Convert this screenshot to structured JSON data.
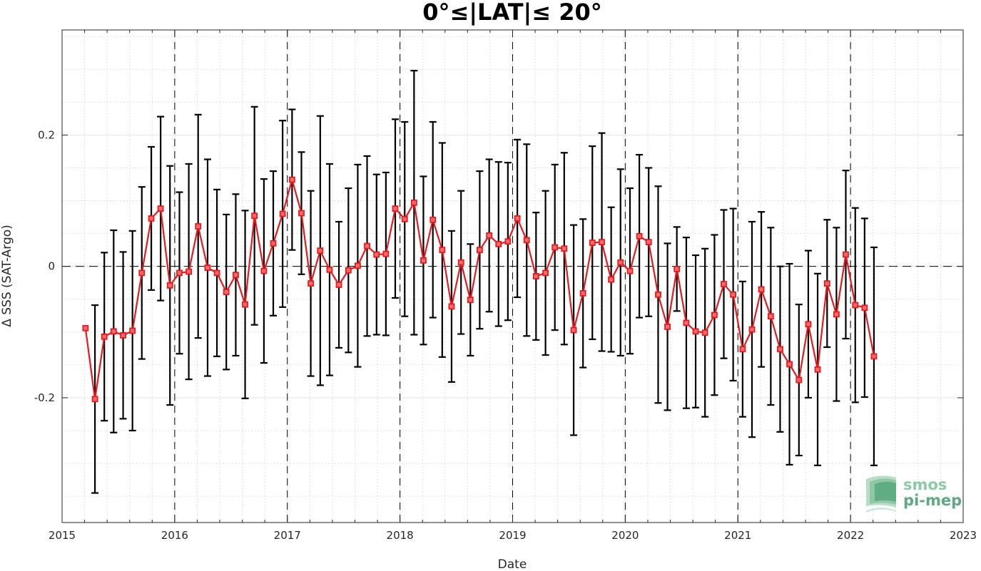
{
  "chart_data": {
    "type": "line",
    "title": "0°≤|LAT|≤ 20°",
    "xlabel": "Date",
    "ylabel": "Δ SSS (SAT-Argo)",
    "xlim": [
      2015,
      2023
    ],
    "ylim": [
      -0.39,
      0.36
    ],
    "xticks": [
      2015,
      2016,
      2017,
      2018,
      2019,
      2020,
      2021,
      2022,
      2023
    ],
    "xtick_labels": [
      "2015",
      "2016",
      "2017",
      "2018",
      "2019",
      "2020",
      "2021",
      "2022",
      "2023"
    ],
    "yticks": [
      -0.2,
      0,
      0.2
    ],
    "ytick_labels": [
      "-0.2",
      "0",
      "0.2"
    ],
    "grid": true,
    "year_separators": [
      2016,
      2017,
      2018,
      2019,
      2020,
      2021,
      2022
    ],
    "zero_line": true,
    "series": [
      {
        "marker": "square",
        "color": "#e8191d",
        "errorbar_color": "#000000",
        "x": [
          2015.208,
          2015.292,
          2015.375,
          2015.458,
          2015.542,
          2015.625,
          2015.708,
          2015.792,
          2015.875,
          2015.958,
          2016.042,
          2016.125,
          2016.208,
          2016.292,
          2016.375,
          2016.458,
          2016.542,
          2016.625,
          2016.708,
          2016.792,
          2016.875,
          2016.958,
          2017.042,
          2017.125,
          2017.208,
          2017.292,
          2017.375,
          2017.458,
          2017.542,
          2017.625,
          2017.708,
          2017.792,
          2017.875,
          2017.958,
          2018.042,
          2018.125,
          2018.208,
          2018.292,
          2018.375,
          2018.458,
          2018.542,
          2018.625,
          2018.708,
          2018.792,
          2018.875,
          2018.958,
          2019.042,
          2019.125,
          2019.208,
          2019.292,
          2019.375,
          2019.458,
          2019.542,
          2019.625,
          2019.708,
          2019.792,
          2019.875,
          2019.958,
          2020.042,
          2020.125,
          2020.208,
          2020.292,
          2020.375,
          2020.458,
          2020.542,
          2020.625,
          2020.708,
          2020.792,
          2020.875,
          2020.958,
          2021.042,
          2021.125,
          2021.208,
          2021.292,
          2021.375,
          2021.458,
          2021.542,
          2021.625,
          2021.708,
          2021.792,
          2021.875,
          2021.958,
          2022.042,
          2022.125,
          2022.208
        ],
        "y": [
          -0.094,
          -0.202,
          -0.107,
          -0.099,
          -0.105,
          -0.098,
          -0.01,
          0.073,
          0.088,
          -0.029,
          -0.01,
          -0.008,
          0.061,
          -0.002,
          -0.01,
          -0.039,
          -0.013,
          -0.058,
          0.077,
          -0.007,
          0.035,
          0.08,
          0.132,
          0.081,
          -0.026,
          0.024,
          -0.005,
          -0.028,
          -0.006,
          0.001,
          0.031,
          0.018,
          0.019,
          0.088,
          0.072,
          0.097,
          0.009,
          0.071,
          0.025,
          -0.061,
          0.006,
          -0.051,
          0.025,
          0.047,
          0.034,
          0.038,
          0.073,
          0.04,
          -0.015,
          -0.01,
          0.029,
          0.027,
          -0.097,
          -0.041,
          0.036,
          0.037,
          -0.02,
          0.006,
          -0.007,
          0.046,
          0.037,
          -0.043,
          -0.092,
          -0.004,
          -0.086,
          -0.099,
          -0.101,
          -0.074,
          -0.027,
          -0.043,
          -0.126,
          -0.096,
          -0.035,
          -0.076,
          -0.126,
          -0.149,
          -0.173,
          -0.088,
          -0.157,
          -0.026,
          -0.073,
          0.018,
          -0.059,
          -0.063,
          -0.137
        ],
        "yerr": [
          0.0,
          0.143,
          0.128,
          0.154,
          0.127,
          0.152,
          0.131,
          0.109,
          0.14,
          0.182,
          0.123,
          0.164,
          0.17,
          0.165,
          0.127,
          0.118,
          0.123,
          0.143,
          0.166,
          0.14,
          0.11,
          0.142,
          0.107,
          0.093,
          0.141,
          0.205,
          0.161,
          0.096,
          0.125,
          0.154,
          0.137,
          0.122,
          0.124,
          0.136,
          0.148,
          0.201,
          0.128,
          0.149,
          0.163,
          0.115,
          0.109,
          0.085,
          0.12,
          0.116,
          0.125,
          0.12,
          0.12,
          0.146,
          0.097,
          0.125,
          0.126,
          0.146,
          0.16,
          0.113,
          0.147,
          0.166,
          0.11,
          0.142,
          0.126,
          0.124,
          0.113,
          0.165,
          0.127,
          0.064,
          0.13,
          0.116,
          0.128,
          0.122,
          0.113,
          0.131,
          0.103,
          0.164,
          0.118,
          0.135,
          0.126,
          0.153,
          0.115,
          0.112,
          0.146,
          0.097,
          0.132,
          0.128,
          0.148,
          0.136,
          0.166
        ]
      }
    ]
  },
  "logo": {
    "line1": "smos",
    "line2": "pi-mep"
  }
}
